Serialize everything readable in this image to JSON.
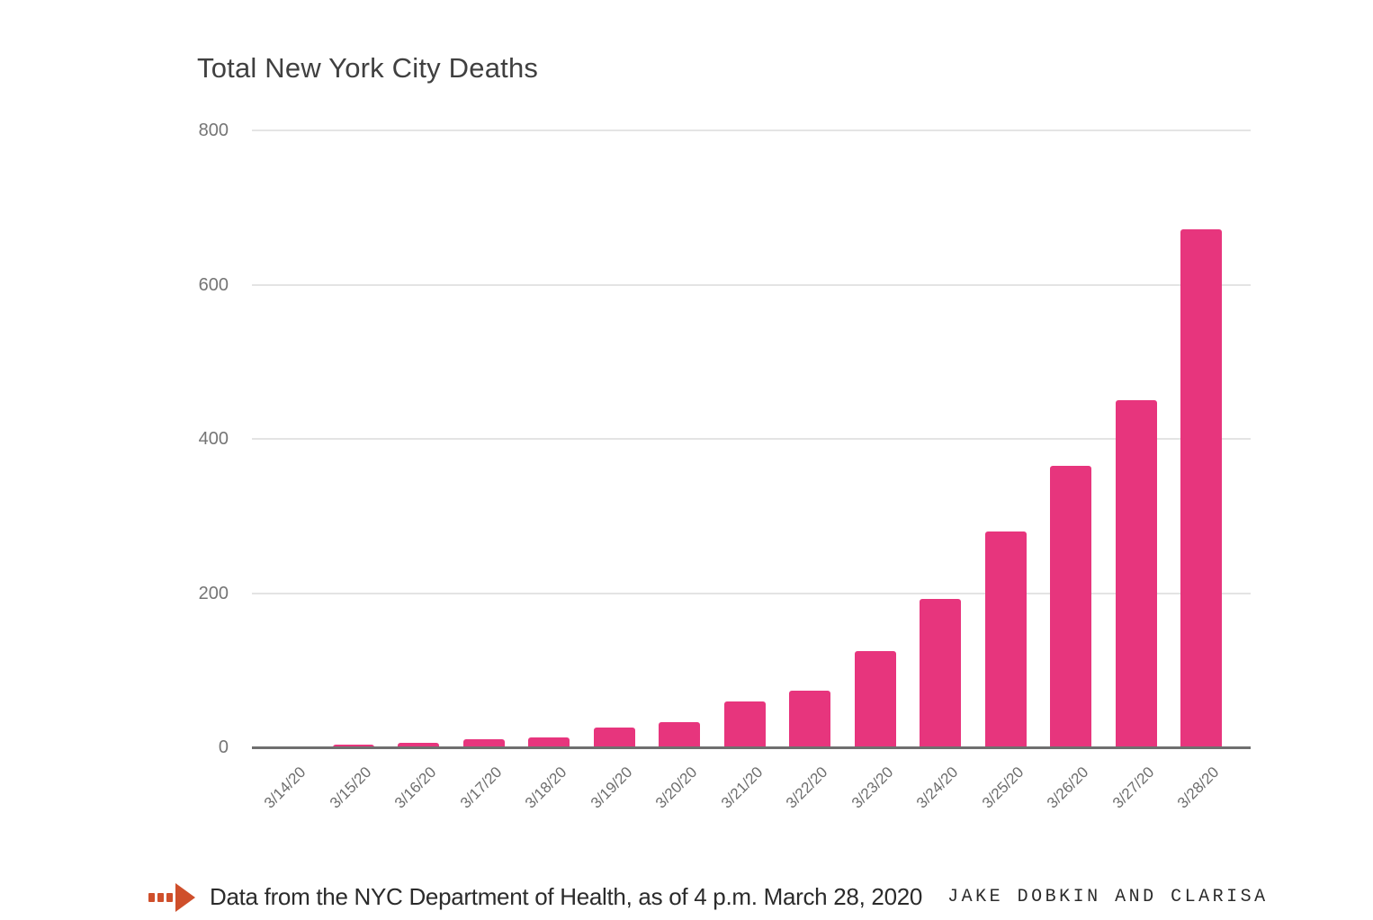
{
  "chart_data": {
    "type": "bar",
    "title": "Total New York City Deaths",
    "categories": [
      "3/14/20",
      "3/15/20",
      "3/16/20",
      "3/17/20",
      "3/18/20",
      "3/19/20",
      "3/20/20",
      "3/21/20",
      "3/22/20",
      "3/23/20",
      "3/24/20",
      "3/25/20",
      "3/26/20",
      "3/27/20",
      "3/28/20"
    ],
    "values": [
      1,
      4,
      6,
      10,
      13,
      26,
      33,
      60,
      73,
      125,
      192,
      280,
      365,
      450,
      672
    ],
    "xlabel": "",
    "ylabel": "",
    "ylim": [
      0,
      800
    ],
    "yticks": [
      0,
      200,
      400,
      600,
      800
    ],
    "grid": true,
    "legend": "none",
    "bar_color": "#e7357d",
    "gridline_color": "#e4e4e4",
    "axis_color": "#6f6f6f",
    "tick_label_color": "#757575",
    "title_color": "#404040"
  },
  "caption": {
    "text": "Data from the NYC Department of Health, as of 4 p.m. March 28, 2020",
    "byline": "JAKE DOBKIN AND CLARISA",
    "arrow_color": "#cf4f2b"
  }
}
